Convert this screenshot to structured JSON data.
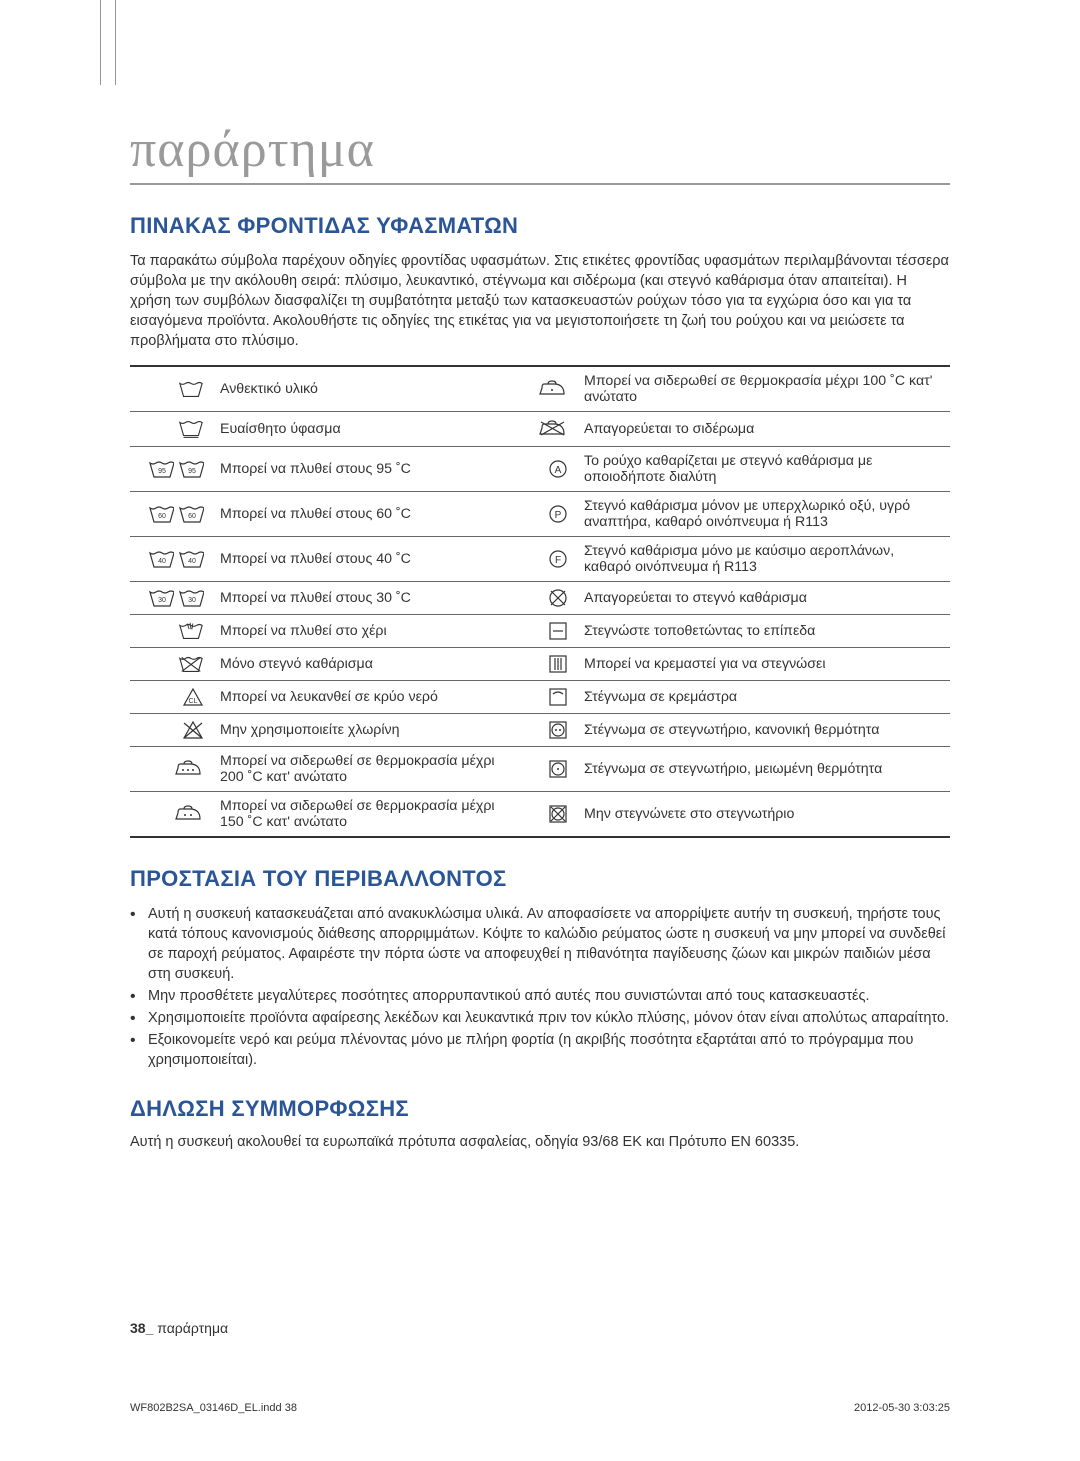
{
  "title": "παράρτημα",
  "h_fabric": "ΠΙΝΑΚΑΣ ΦΡΟΝΤΙΔΑΣ ΥΦΑΣΜΑΤΩΝ",
  "intro": "Τα παρακάτω σύμβολα παρέχουν οδηγίες φροντίδας υφασμάτων. Στις ετικέτες φροντίδας υφασμάτων περιλαμβάνονται τέσσερα σύμβολα με την ακόλουθη σειρά: πλύσιμο, λευκαντικό, στέγνωμα και σιδέρωμα (και στεγνό καθάρισμα όταν απαιτείται). Η χρήση των συμβόλων διασφαλίζει τη συμβατότητα μεταξύ των κατασκευαστών ρούχων τόσο για τα εγχώρια όσο και για τα εισαγόμενα προϊόντα. Ακολουθήστε τις οδηγίες της ετικέτας για να μεγιστοποιήσετε τη ζωή του ρούχου και να μειώσετε τα προβλήματα στο πλύσιμο.",
  "rows": [
    {
      "l": "Ανθεκτικό υλικό",
      "r": "Μπορεί να σιδερωθεί σε θερμοκρασία μέχρι 100 ˚C κατ' ανώτατο",
      "li": "basin",
      "ri": "iron1"
    },
    {
      "l": "Ευαίσθητο ύφασμα",
      "r": "Απαγορεύεται το σιδέρωμα",
      "li": "basin-u",
      "ri": "iron-x"
    },
    {
      "l": "Μπορεί να πλυθεί στους 95 ˚C",
      "r": "Το ρούχο καθαρίζεται με στεγνό καθάρισμα με οποιοδήποτε διαλύτη",
      "li": "basin95x2",
      "ri": "circleA"
    },
    {
      "l": "Μπορεί να πλυθεί στους 60 ˚C",
      "r": "Στεγνό καθάρισμα μόνον με υπερχλωρικό οξύ, υγρό αναπτήρα, καθαρό οινόπνευμα ή R113",
      "li": "basin60x2",
      "ri": "circleP"
    },
    {
      "l": "Μπορεί να πλυθεί στους 40 ˚C",
      "r": "Στεγνό καθάρισμα μόνο με καύσιμο αεροπλάνων, καθαρό οινόπνευμα ή R113",
      "li": "basin40x2",
      "ri": "circleF"
    },
    {
      "l": "Μπορεί να πλυθεί στους 30 ˚C",
      "r": "Απαγορεύεται το στεγνό καθάρισμα",
      "li": "basin30x2",
      "ri": "circle-x"
    },
    {
      "l": "Μπορεί να πλυθεί στο χέρι",
      "r": "Στεγνώστε τοποθετώντας το επίπεδα",
      "li": "hand",
      "ri": "sq-flat"
    },
    {
      "l": "Μόνο στεγνό καθάρισμα",
      "r": "Μπορεί να κρεμαστεί για να στεγνώσει",
      "li": "basin-x",
      "ri": "sq-hang"
    },
    {
      "l": "Μπορεί να λευκανθεί σε κρύο νερό",
      "r": "Στέγνωμα σε κρεμάστρα",
      "li": "tri-cl",
      "ri": "sq-hanger"
    },
    {
      "l": "Μην χρησιμοποιείτε χλωρίνη",
      "r": "Στέγνωμα σε στεγνωτήριο, κανονική θερμότητα",
      "li": "tri-x",
      "ri": "tumble2"
    },
    {
      "l": "Μπορεί να σιδερωθεί σε θερμοκρασία μέχρι 200 ˚C κατ' ανώτατο",
      "r": "Στέγνωμα σε στεγνωτήριο, μειωμένη θερμότητα",
      "li": "iron3",
      "ri": "tumble1"
    },
    {
      "l": "Μπορεί να σιδερωθεί σε θερμοκρασία μέχρι 150 ˚C κατ' ανώτατο",
      "r": "Μην στεγνώνετε στο στεγνωτήριο",
      "li": "iron2",
      "ri": "tumble-x"
    }
  ],
  "h_env": "ΠΡΟΣΤΑΣΙΑ ΤΟΥ ΠΕΡΙΒΑΛΛΟΝΤΟΣ",
  "env": [
    "Αυτή η συσκευή κατασκευάζεται από ανακυκλώσιμα υλικά. Αν αποφασίσετε να απορρίψετε αυτήν τη συσκευή, τηρήστε τους κατά τόπους κανονισμούς διάθεσης απορριμμάτων. Κόψτε το καλώδιο ρεύματος ώστε η συσκευή να μην μπορεί να συνδεθεί σε παροχή ρεύματος. Αφαιρέστε την πόρτα ώστε να αποφευχθεί η πιθανότητα παγίδευσης ζώων και μικρών παιδιών μέσα στη συσκευή.",
    "Μην προσθέτετε μεγαλύτερες ποσότητες απορρυπαντικού από αυτές που συνιστώνται από τους κατασκευαστές.",
    "Χρησιμοποιείτε προϊόντα αφαίρεσης λεκέδων και λευκαντικά πριν τον κύκλο πλύσης, μόνον όταν είναι απολύτως απαραίτητο.",
    "Εξοικονομείτε νερό και ρεύμα πλένοντας μόνο με πλήρη φορτία (η ακριβής ποσότητα εξαρτάται από το πρόγραμμα που χρησιμοποιείται)."
  ],
  "h_conf": "ΔΗΛΩΣΗ ΣΥΜΜΟΡΦΩΣΗΣ",
  "conf": "Αυτή η συσκευή ακολουθεί τα ευρωπαϊκά πρότυπα ασφαλείας, οδηγία 93/68 ΕΚ και Πρότυπο EN 60335.",
  "footer_pn": "38_",
  "footer_txt": " παράρτημα",
  "indd": "WF802B2SA_03146D_EL.indd   38",
  "ts": "2012-05-30    3:03:25"
}
